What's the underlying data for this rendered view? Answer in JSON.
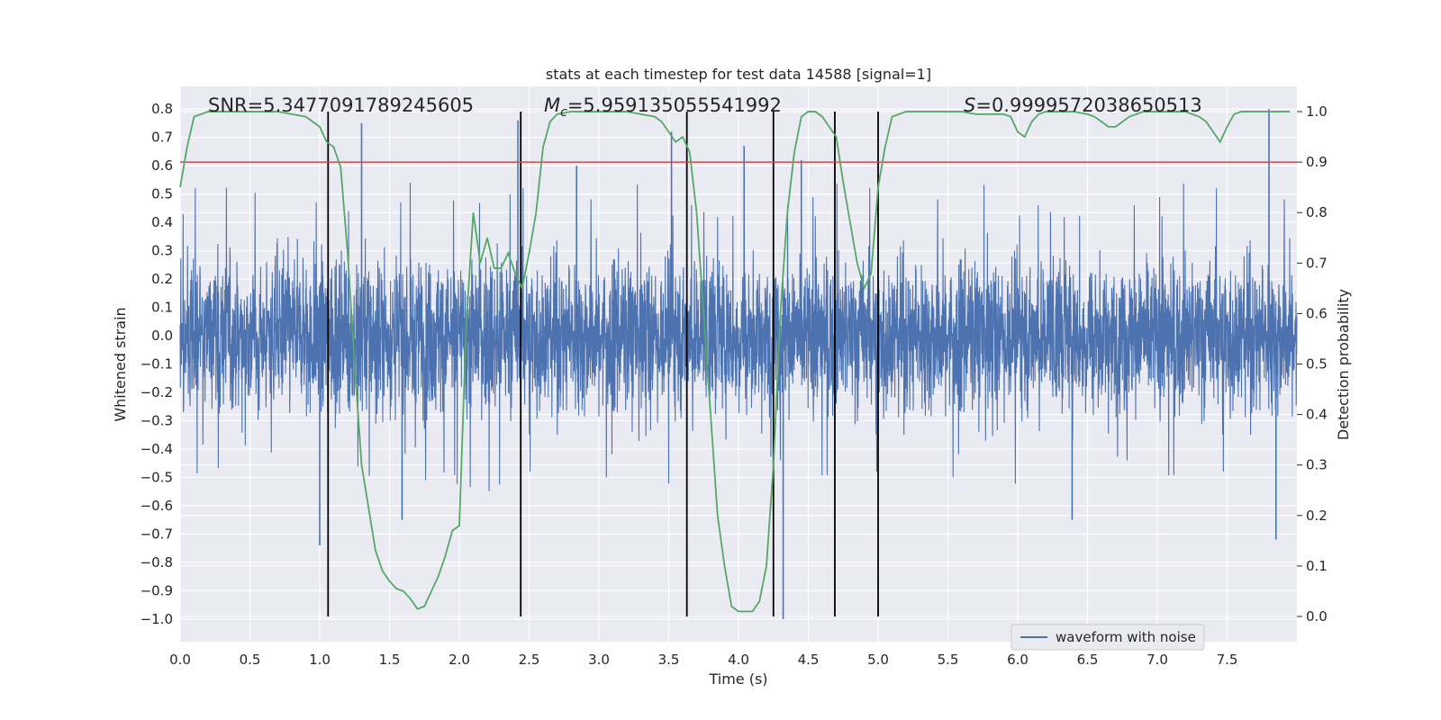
{
  "chart_data": {
    "type": "line",
    "title": "stats at each timestep for test data 14588 [signal=1]",
    "xlabel": "Time (s)",
    "ylabel_left": "Whitened strain",
    "ylabel_right": "Detection probability",
    "xlim": [
      0.0,
      8.0
    ],
    "ylim_left": [
      -1.08,
      0.88
    ],
    "ylim_right": [
      -0.05,
      1.05
    ],
    "x_ticks": [
      "0.0",
      "0.5",
      "1.0",
      "1.5",
      "2.0",
      "2.5",
      "3.0",
      "3.5",
      "4.0",
      "4.5",
      "5.0",
      "5.5",
      "6.0",
      "6.5",
      "7.0",
      "7.5"
    ],
    "y_ticks_left": [
      "0.8",
      "0.7",
      "0.6",
      "0.5",
      "0.4",
      "0.3",
      "0.2",
      "0.1",
      "0.0",
      "−0.1",
      "−0.2",
      "−0.3",
      "−0.4",
      "−0.5",
      "−0.6",
      "−0.7",
      "−0.8",
      "−0.9",
      "−1.0"
    ],
    "y_ticks_right": [
      "1.0",
      "0.9",
      "0.8",
      "0.7",
      "0.6",
      "0.5",
      "0.4",
      "0.3",
      "0.2",
      "0.1",
      "0.0"
    ],
    "annotations": {
      "snr": "SNR=5.3477091789245605",
      "mc_symbol": "M",
      "mc_sub": "c",
      "mc_value": "=5.959135055541992",
      "s_symbol": "S",
      "s_value": "=0.9999572038650513"
    },
    "legend": {
      "label": "waveform with noise",
      "location": "lower-right"
    },
    "threshold_probability": 0.9,
    "vertical_lines_s": [
      1.06,
      2.44,
      3.63,
      4.25,
      4.69,
      5.0
    ],
    "waveform": {
      "name": "waveform with noise",
      "envelope_amplitude": 0.45,
      "notable_spikes": [
        [
          1.0,
          -0.74
        ],
        [
          1.3,
          0.75
        ],
        [
          1.59,
          -0.65
        ],
        [
          2.42,
          0.76
        ],
        [
          2.84,
          0.6
        ],
        [
          3.52,
          0.72
        ],
        [
          4.04,
          0.67
        ],
        [
          4.32,
          -1.0
        ],
        [
          4.45,
          0.62
        ],
        [
          6.39,
          -0.65
        ],
        [
          7.8,
          0.8
        ],
        [
          7.85,
          -0.72
        ]
      ]
    },
    "probability_series": {
      "name": "detection probability",
      "x": [
        0.0,
        0.05,
        0.1,
        0.2,
        0.3,
        0.4,
        0.5,
        0.6,
        0.7,
        0.8,
        0.9,
        1.0,
        1.05,
        1.1,
        1.15,
        1.2,
        1.25,
        1.3,
        1.4,
        1.45,
        1.5,
        1.55,
        1.6,
        1.65,
        1.7,
        1.75,
        1.8,
        1.85,
        1.9,
        1.95,
        2.0,
        2.05,
        2.1,
        2.15,
        2.2,
        2.25,
        2.3,
        2.35,
        2.4,
        2.45,
        2.5,
        2.55,
        2.6,
        2.65,
        2.7,
        2.8,
        2.9,
        3.0,
        3.1,
        3.2,
        3.3,
        3.4,
        3.45,
        3.5,
        3.55,
        3.6,
        3.65,
        3.7,
        3.75,
        3.8,
        3.85,
        3.9,
        3.95,
        4.0,
        4.05,
        4.1,
        4.15,
        4.2,
        4.25,
        4.3,
        4.35,
        4.4,
        4.45,
        4.5,
        4.55,
        4.6,
        4.65,
        4.7,
        4.75,
        4.8,
        4.85,
        4.9,
        4.95,
        5.0,
        5.05,
        5.1,
        5.2,
        5.3,
        5.4,
        5.5,
        5.6,
        5.7,
        5.8,
        5.9,
        5.95,
        6.0,
        6.05,
        6.1,
        6.15,
        6.2,
        6.3,
        6.4,
        6.5,
        6.55,
        6.6,
        6.65,
        6.7,
        6.8,
        6.9,
        7.0,
        7.1,
        7.2,
        7.3,
        7.35,
        7.4,
        7.45,
        7.5,
        7.55,
        7.6,
        7.65,
        7.7,
        7.75,
        7.8,
        7.9,
        7.95
      ],
      "y": [
        0.85,
        0.93,
        0.99,
        1.0,
        1.0,
        1.0,
        1.0,
        1.0,
        1.0,
        0.995,
        0.99,
        0.97,
        0.94,
        0.93,
        0.89,
        0.72,
        0.5,
        0.3,
        0.13,
        0.09,
        0.07,
        0.055,
        0.05,
        0.035,
        0.015,
        0.02,
        0.05,
        0.08,
        0.12,
        0.17,
        0.18,
        0.58,
        0.8,
        0.7,
        0.75,
        0.69,
        0.69,
        0.72,
        0.68,
        0.65,
        0.72,
        0.8,
        0.93,
        0.98,
        0.995,
        1.0,
        1.0,
        1.0,
        1.0,
        1.0,
        0.995,
        0.99,
        0.98,
        0.96,
        0.94,
        0.95,
        0.92,
        0.8,
        0.6,
        0.4,
        0.2,
        0.1,
        0.02,
        0.01,
        0.01,
        0.01,
        0.03,
        0.1,
        0.3,
        0.6,
        0.8,
        0.92,
        0.99,
        1.0,
        1.0,
        0.99,
        0.97,
        0.95,
        0.86,
        0.78,
        0.7,
        0.65,
        0.68,
        0.85,
        0.93,
        0.99,
        1.0,
        1.0,
        1.0,
        1.0,
        1.0,
        0.995,
        0.995,
        0.995,
        0.99,
        0.96,
        0.95,
        0.98,
        0.995,
        1.0,
        1.0,
        1.0,
        0.995,
        0.99,
        0.98,
        0.97,
        0.97,
        0.99,
        1.0,
        1.0,
        1.0,
        1.0,
        0.99,
        0.98,
        0.96,
        0.94,
        0.97,
        0.995,
        1.0,
        1.0,
        1.0,
        1.0,
        1.0,
        1.0,
        1.0
      ]
    },
    "colors": {
      "background": "#eaeaf2",
      "grid": "#ffffff",
      "waveform": "#4c72b0",
      "probability": "#55a868",
      "threshold": "#c44e52",
      "vline": "#000000",
      "text": "#262626"
    }
  }
}
